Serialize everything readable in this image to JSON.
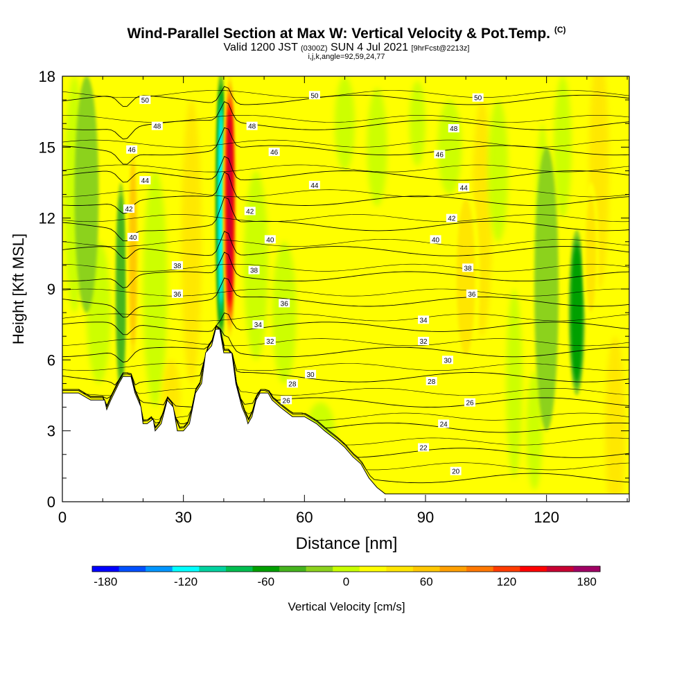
{
  "title": {
    "main": "Wind-Parallel Section at Max W: Vertical Velocity & Pot.Temp.",
    "copyright": "(C)",
    "valid": "Valid 1200 JST",
    "utc": "(0300Z)",
    "date": "SUN 4 Jul 2021",
    "fcst": "[9hrFcst@2213z]",
    "params": "i,j,k,angle=92,59,24,77"
  },
  "chart_data": {
    "type": "heatmap",
    "xlabel": "Distance [nm]",
    "ylabel": "Height [Kft MSL]",
    "xlim": [
      0,
      140.5
    ],
    "ylim": [
      0,
      18
    ],
    "x_ticks": [
      "0",
      "30",
      "60",
      "90",
      "120"
    ],
    "x_tick_values": [
      0,
      30,
      60,
      90,
      120
    ],
    "y_ticks": [
      "0",
      "3",
      "6",
      "9",
      "12",
      "15",
      "18"
    ],
    "y_tick_values": [
      0,
      3,
      6,
      9,
      12,
      15,
      18
    ],
    "field": "Vertical Velocity [cm/s]",
    "colorbar": {
      "label": "Vertical Velocity [cm/s]",
      "tick_labels": [
        "-180",
        "-120",
        "-60",
        "0",
        "60",
        "120",
        "180"
      ],
      "tick_values": [
        -180,
        -120,
        -60,
        0,
        60,
        120,
        180
      ],
      "levels": [
        -190,
        -170,
        -150,
        -130,
        -110,
        -90,
        -70,
        -50,
        -30,
        -10,
        10,
        30,
        50,
        70,
        90,
        110,
        130,
        150,
        170,
        190
      ],
      "colors": [
        "#0000ff",
        "#0050ff",
        "#0096ff",
        "#00ffff",
        "#00d2a0",
        "#00be50",
        "#00a000",
        "#46b41e",
        "#8cd21e",
        "#c8ff00",
        "#ffff00",
        "#ffe600",
        "#ffc800",
        "#ffa000",
        "#ff7800",
        "#ff3c00",
        "#ff0000",
        "#c80032",
        "#a00064"
      ]
    },
    "terrain_profile": [
      [
        0,
        4.6
      ],
      [
        4,
        4.6
      ],
      [
        7,
        4.3
      ],
      [
        10.5,
        4.3
      ],
      [
        11,
        3.9
      ],
      [
        12,
        4.3
      ],
      [
        14,
        5.0
      ],
      [
        15,
        5.3
      ],
      [
        17,
        5.3
      ],
      [
        18,
        4.6
      ],
      [
        19.5,
        4.0
      ],
      [
        20,
        3.3
      ],
      [
        21,
        3.3
      ],
      [
        22.5,
        3.5
      ],
      [
        23,
        3.0
      ],
      [
        24.5,
        3.3
      ],
      [
        26,
        4.3
      ],
      [
        27.5,
        4.0
      ],
      [
        28.5,
        3.0
      ],
      [
        30,
        3.0
      ],
      [
        31.5,
        3.3
      ],
      [
        33,
        4.6
      ],
      [
        34.5,
        5.0
      ],
      [
        35.5,
        6.3
      ],
      [
        37,
        6.6
      ],
      [
        38,
        7.3
      ],
      [
        39,
        7.3
      ],
      [
        40,
        6.3
      ],
      [
        42,
        6.3
      ],
      [
        43,
        5.0
      ],
      [
        44.5,
        4.0
      ],
      [
        45.5,
        3.6
      ],
      [
        46,
        3.3
      ],
      [
        47,
        3.6
      ],
      [
        48,
        4.3
      ],
      [
        49,
        4.6
      ],
      [
        51,
        4.6
      ],
      [
        52,
        4.3
      ],
      [
        54,
        4.0
      ],
      [
        57,
        3.6
      ],
      [
        60,
        3.6
      ],
      [
        63,
        3.3
      ],
      [
        65,
        3.0
      ],
      [
        68,
        2.6
      ],
      [
        70,
        2.3
      ],
      [
        72,
        1.9
      ],
      [
        74,
        1.6
      ],
      [
        76,
        1.0
      ],
      [
        78,
        0.6
      ],
      [
        80,
        0.33
      ],
      [
        85,
        0.33
      ],
      [
        100,
        0.33
      ],
      [
        140.5,
        0.33
      ]
    ],
    "updrafts": [
      {
        "x": 41.5,
        "y": 12.5,
        "w": 1.6,
        "h": 5.8,
        "value": 150
      },
      {
        "x": 17.5,
        "y": 10.5,
        "w": 1.5,
        "h": 5.0,
        "value": 60
      },
      {
        "x": 100,
        "y": 9.5,
        "w": 3.5,
        "h": 4.0,
        "value": 30
      },
      {
        "x": 131,
        "y": 10.5,
        "w": 2.0,
        "h": 3.0,
        "value": 30
      }
    ],
    "downdrafts": [
      {
        "x": 39.3,
        "y": 12.5,
        "w": 1.3,
        "h": 5.8,
        "value": -120
      },
      {
        "x": 14.5,
        "y": 9.0,
        "w": 1.3,
        "h": 4.5,
        "value": -50
      },
      {
        "x": 127.5,
        "y": 8.0,
        "w": 2.0,
        "h": 3.5,
        "value": -70
      },
      {
        "x": 6,
        "y": 13,
        "w": 3,
        "h": 5,
        "value": -20
      },
      {
        "x": 120,
        "y": 9,
        "w": 3,
        "h": 6,
        "value": -20
      }
    ],
    "theta_contours": {
      "levels": [
        20,
        22,
        24,
        26,
        28,
        30,
        32,
        34,
        36,
        38,
        40,
        42,
        44,
        46,
        48,
        50
      ],
      "labels": [
        {
          "text": "50",
          "x": 20.5,
          "y": 17.0
        },
        {
          "text": "50",
          "x": 62.5,
          "y": 17.2
        },
        {
          "text": "50",
          "x": 103,
          "y": 17.1
        },
        {
          "text": "48",
          "x": 23.5,
          "y": 15.9
        },
        {
          "text": "48",
          "x": 47,
          "y": 15.9
        },
        {
          "text": "48",
          "x": 97,
          "y": 15.8
        },
        {
          "text": "46",
          "x": 17.2,
          "y": 14.9
        },
        {
          "text": "46",
          "x": 52.5,
          "y": 14.8
        },
        {
          "text": "46",
          "x": 93.5,
          "y": 14.7
        },
        {
          "text": "44",
          "x": 20.5,
          "y": 13.6
        },
        {
          "text": "44",
          "x": 62.5,
          "y": 13.4
        },
        {
          "text": "44",
          "x": 99.5,
          "y": 13.3
        },
        {
          "text": "42",
          "x": 16.5,
          "y": 12.4
        },
        {
          "text": "42",
          "x": 46.5,
          "y": 12.3
        },
        {
          "text": "42",
          "x": 96.5,
          "y": 12.0
        },
        {
          "text": "40",
          "x": 17.5,
          "y": 11.2
        },
        {
          "text": "40",
          "x": 51.5,
          "y": 11.1
        },
        {
          "text": "40",
          "x": 92.5,
          "y": 11.1
        },
        {
          "text": "38",
          "x": 28.5,
          "y": 10.0
        },
        {
          "text": "38",
          "x": 47.5,
          "y": 9.8
        },
        {
          "text": "38",
          "x": 100.5,
          "y": 9.9
        },
        {
          "text": "36",
          "x": 28.5,
          "y": 8.8
        },
        {
          "text": "36",
          "x": 55,
          "y": 8.4
        },
        {
          "text": "36",
          "x": 101.5,
          "y": 8.8
        },
        {
          "text": "34",
          "x": 48.5,
          "y": 7.5
        },
        {
          "text": "34",
          "x": 89.5,
          "y": 7.7
        },
        {
          "text": "32",
          "x": 51.5,
          "y": 6.8
        },
        {
          "text": "32",
          "x": 89.5,
          "y": 6.8
        },
        {
          "text": "30",
          "x": 61.5,
          "y": 5.4
        },
        {
          "text": "30",
          "x": 95.5,
          "y": 6.0
        },
        {
          "text": "28",
          "x": 57,
          "y": 5.0
        },
        {
          "text": "28",
          "x": 91.5,
          "y": 5.1
        },
        {
          "text": "26",
          "x": 55.5,
          "y": 4.3
        },
        {
          "text": "26",
          "x": 101,
          "y": 4.2
        },
        {
          "text": "24",
          "x": 94.5,
          "y": 3.3
        },
        {
          "text": "22",
          "x": 89.5,
          "y": 2.3
        },
        {
          "text": "20",
          "x": 97.5,
          "y": 1.3
        }
      ]
    }
  }
}
